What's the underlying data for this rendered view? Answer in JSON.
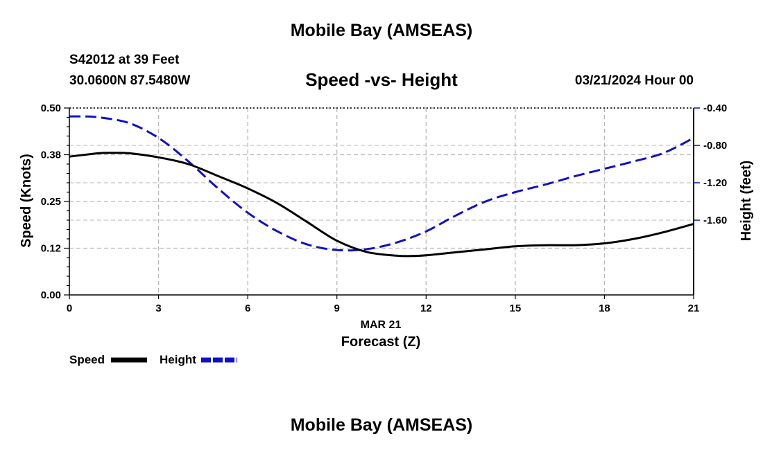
{
  "header": {
    "title": "Mobile Bay (AMSEAS)",
    "station": "S42012 at 39 Feet",
    "coordinates": "30.0600N  87.5480W",
    "datetime": "03/21/2024 Hour 00"
  },
  "footer": {
    "title": "Mobile Bay (AMSEAS)"
  },
  "chart_data": {
    "type": "line",
    "title": "Speed -vs- Height",
    "xlabel": "Forecast (Z)",
    "date_label": "MAR 21",
    "ylabel": "Speed (Knots)",
    "y2label": "Height (feet)",
    "xlim": [
      0,
      21
    ],
    "ylim": [
      0,
      0.5
    ],
    "y2lim": [
      -2.4,
      -0.4
    ],
    "x_ticks": [
      0,
      3,
      6,
      9,
      12,
      15,
      18,
      21
    ],
    "x_tick_labels": [
      "0",
      "3",
      "6",
      "9",
      "12",
      "15",
      "18",
      "21"
    ],
    "y_ticks": [
      0,
      0.125,
      0.25,
      0.375,
      0.5
    ],
    "y_tick_labels": [
      "0.00",
      "0.12",
      "0.25",
      "0.38",
      "0.50"
    ],
    "y2_ticks": [
      -1.6,
      -1.2,
      -0.8,
      -0.4
    ],
    "y2_tick_labels": [
      "-1.60",
      "-1.20",
      "-0.80",
      "-0.40"
    ],
    "grid": true,
    "legend_position": "bottom-left",
    "series": [
      {
        "name": "Speed",
        "axis": "left",
        "color": "#000000",
        "style": "solid",
        "x": [
          0,
          1,
          1.5,
          2,
          3,
          4,
          5,
          6,
          7,
          8,
          9,
          10,
          11,
          11.5,
          12,
          13,
          14,
          15,
          16,
          17,
          18,
          19,
          20,
          21
        ],
        "values": [
          0.37,
          0.379,
          0.38,
          0.379,
          0.368,
          0.35,
          0.318,
          0.285,
          0.245,
          0.195,
          0.145,
          0.115,
          0.105,
          0.104,
          0.106,
          0.114,
          0.122,
          0.13,
          0.133,
          0.133,
          0.138,
          0.15,
          0.168,
          0.19
        ]
      },
      {
        "name": "Height",
        "axis": "right",
        "color": "#1010c8",
        "style": "dashed",
        "x": [
          0,
          0.5,
          1,
          2,
          3,
          4,
          5,
          6,
          7,
          8,
          9,
          10,
          11,
          12,
          13,
          14,
          15,
          16,
          17,
          18,
          19,
          20,
          21
        ],
        "values": [
          -0.49,
          -0.49,
          -0.5,
          -0.56,
          -0.72,
          -0.97,
          -1.26,
          -1.52,
          -1.72,
          -1.86,
          -1.92,
          -1.91,
          -1.84,
          -1.72,
          -1.55,
          -1.4,
          -1.3,
          -1.22,
          -1.13,
          -1.05,
          -0.97,
          -0.88,
          -0.72
        ]
      }
    ]
  }
}
